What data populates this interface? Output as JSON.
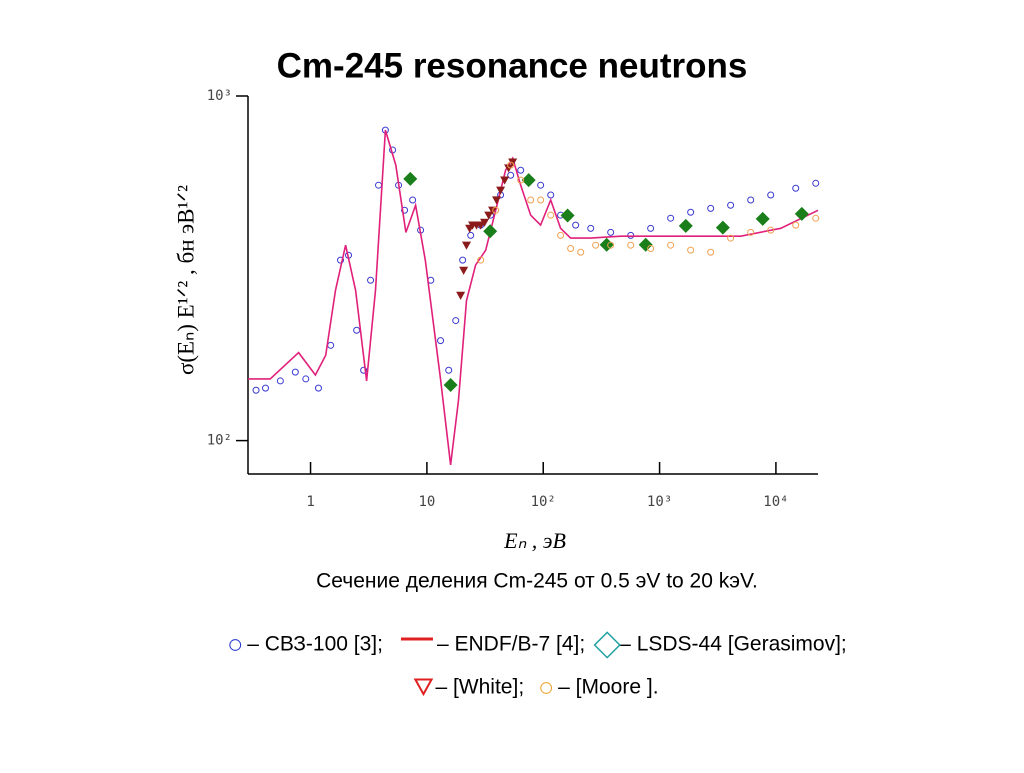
{
  "chart_data": {
    "type": "scatter",
    "title": "Cm-245 resonance neutrons",
    "xlabel": "Eₙ , эВ",
    "ylabel": "σ(Eₙ) E¹ᐟ² , бн эВ¹ᐟ²",
    "caption": "Сечение деления Cm-245 от 0.5 эV to 20 kэV.",
    "xscale": "log",
    "yscale": "log",
    "xlim": [
      0.29,
      23000
    ],
    "ylim": [
      80,
      1000
    ],
    "xticks": [
      1,
      10,
      {
        "value": 100,
        "label": "10²"
      },
      {
        "value": 1000,
        "label": "10³"
      },
      {
        "value": 10000,
        "label": "10⁴"
      }
    ],
    "yticks": [
      {
        "value": 100,
        "label": "10²"
      },
      {
        "value": 1000,
        "label": "10³"
      }
    ],
    "series": [
      {
        "name": "– СВЗ-100 [3];",
        "mark": "circle",
        "color": "#3a3ad0",
        "legend_color": "#2233cc",
        "x": [
          0.34,
          0.41,
          0.55,
          0.74,
          0.91,
          1.17,
          1.49,
          1.81,
          2.12,
          2.49,
          2.86,
          3.28,
          3.84,
          4.4,
          5.07,
          5.71,
          6.43,
          7.54,
          8.83,
          10.8,
          13.1,
          15.4,
          17.7,
          20.3,
          23.8,
          29,
          35.3,
          43,
          52.5,
          64,
          78,
          95,
          116,
          141,
          190,
          256,
          380,
          565,
          838,
          1245,
          1850,
          2750,
          4080,
          6070,
          9020,
          14800,
          22000
        ],
        "values": [
          140,
          142,
          149,
          158,
          151,
          142,
          189,
          334,
          345,
          209,
          160,
          292,
          551,
          796,
          697,
          551,
          466,
          499,
          408,
          292,
          195,
          160,
          223,
          334,
          394,
          422,
          451,
          516,
          589,
          609,
          570,
          551,
          516,
          451,
          422,
          413,
          402,
          394,
          413,
          442,
          460,
          472,
          482,
          499,
          516,
          540,
          558
        ]
      },
      {
        "name": "– ENDF/B-7 [4];",
        "mark": "line",
        "color": "#e0207a",
        "legend_color": "#e02020",
        "x": [
          0.29,
          0.45,
          0.79,
          1.1,
          1.35,
          1.64,
          2.0,
          2.44,
          3.03,
          3.62,
          4.4,
          5.4,
          6.6,
          8.0,
          9.7,
          13.1,
          16,
          18.7,
          21.9,
          26.2,
          32,
          39,
          47.5,
          54.6,
          64,
          78,
          95,
          116,
          141,
          172,
          256,
          463,
          1020,
          2250,
          4980,
          11000,
          23000
        ],
        "values": [
          151,
          151,
          180,
          155,
          177,
          273,
          369,
          273,
          149,
          273,
          796,
          630,
          402,
          482,
          334,
          151,
          85,
          131,
          255,
          323,
          357,
          466,
          609,
          660,
          551,
          451,
          422,
          499,
          413,
          387,
          387,
          392,
          392,
          392,
          392,
          413,
          466
        ]
      },
      {
        "name": "– LSDS-44 [Gerasimov];",
        "mark": "diamond",
        "color": "#1a7f1a",
        "legend_color": "#20a0a0",
        "x": [
          7.2,
          16,
          35,
          75,
          162,
          351,
          760,
          1680,
          3500,
          7700,
          16700
        ],
        "values": [
          575,
          145,
          405,
          570,
          450,
          370,
          370,
          420,
          415,
          440,
          455
        ]
      },
      {
        "name": "– [White];",
        "mark": "triangle",
        "color": "#8b1a1a",
        "legend_color": "#e02020",
        "x": [
          19.5,
          20.7,
          21.9,
          23.3,
          24.7,
          26.7,
          29,
          31.3,
          34,
          36.7,
          39.7,
          43,
          46.6,
          50.4,
          54.6
        ],
        "values": [
          264,
          312,
          369,
          413,
          422,
          422,
          422,
          430,
          451,
          466,
          499,
          533,
          570,
          618,
          643
        ]
      },
      {
        "name": "– [Moore ].",
        "mark": "circle",
        "color": "#f0a050",
        "legend_color": "#f0a030",
        "x": [
          29,
          39,
          52.5,
          64,
          78,
          95,
          116,
          141,
          172,
          210,
          282,
          380,
          565,
          838,
          1245,
          1850,
          2750,
          4080,
          6070,
          9020,
          14800,
          22000
        ],
        "values": [
          334,
          466,
          630,
          570,
          499,
          499,
          451,
          394,
          361,
          352,
          369,
          369,
          369,
          361,
          369,
          357,
          352,
          387,
          402,
          408,
          422,
          442
        ]
      }
    ]
  }
}
